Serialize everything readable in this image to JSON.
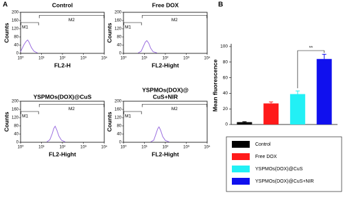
{
  "panel_labels": [
    "A",
    "B"
  ],
  "chart_data": [
    {
      "type": "histogram-line",
      "title": "Control",
      "xlabel": "FL2-H",
      "ylabel": "Counts",
      "xscale": "log",
      "xlim": [
        1,
        10000
      ],
      "xticks": [
        {
          "value": 1,
          "label": "10⁰"
        },
        {
          "value": 10,
          "label": "10¹"
        },
        {
          "value": 100,
          "label": "10²"
        },
        {
          "value": 1000,
          "label": "10³"
        },
        {
          "value": 10000,
          "label": "10⁴"
        }
      ],
      "ylim": [
        0,
        200
      ],
      "yticks": [
        0,
        40,
        80,
        120,
        160,
        200
      ],
      "color": "#9b6fe0",
      "gates": [
        {
          "name": "M1",
          "range": [
            1,
            7.5
          ],
          "level": 150
        },
        {
          "name": "M2",
          "range": [
            7.5,
            10000
          ],
          "level": 185
        }
      ],
      "x": [
        1,
        1.2,
        1.5,
        1.9,
        2.2,
        2.6,
        3.3,
        4.4,
        6.5
      ],
      "values": [
        8,
        25,
        45,
        60,
        65,
        52,
        28,
        10,
        2
      ]
    },
    {
      "type": "histogram-line",
      "title": "Free DOX",
      "xlabel": "FL2-Hight",
      "ylabel": "Counts",
      "xscale": "log",
      "xlim": [
        1,
        10000
      ],
      "xticks": [
        {
          "value": 1,
          "label": "10⁰"
        },
        {
          "value": 10,
          "label": "10¹"
        },
        {
          "value": 100,
          "label": "10²"
        },
        {
          "value": 1000,
          "label": "10³"
        },
        {
          "value": 10000,
          "label": "10⁴"
        }
      ],
      "ylim": [
        0,
        200
      ],
      "yticks": [
        0,
        40,
        80,
        120,
        160,
        200
      ],
      "color": "#9b6fe0",
      "gates": [
        {
          "name": "M1",
          "range": [
            1,
            7.5
          ],
          "level": 150
        },
        {
          "name": "M2",
          "range": [
            7.5,
            10000
          ],
          "level": 185
        }
      ],
      "x": [
        5,
        7,
        9,
        11,
        13,
        16,
        20,
        26,
        40
      ],
      "values": [
        2,
        10,
        35,
        55,
        62,
        50,
        25,
        8,
        2
      ]
    },
    {
      "type": "histogram-line",
      "title": [
        "YSPMOs(DOX)@CuS"
      ],
      "xlabel": "FL2-Hight",
      "ylabel": "Counts",
      "xscale": "log",
      "xlim": [
        1,
        10000
      ],
      "xticks": [
        {
          "value": 1,
          "label": "10⁰"
        },
        {
          "value": 10,
          "label": "10¹"
        },
        {
          "value": 100,
          "label": "10²"
        },
        {
          "value": 1000,
          "label": "10³"
        },
        {
          "value": 10000,
          "label": "10⁴"
        }
      ],
      "ylim": [
        0,
        200
      ],
      "yticks": [
        0,
        40,
        80,
        120,
        160,
        200
      ],
      "color": "#9b6fe0",
      "gates": [
        {
          "name": "M1",
          "range": [
            1,
            7.5
          ],
          "level": 150
        },
        {
          "name": "M2",
          "range": [
            7.5,
            10000
          ],
          "level": 185
        }
      ],
      "x": [
        18,
        25,
        32,
        39,
        45,
        54,
        68,
        90,
        135
      ],
      "values": [
        2,
        12,
        40,
        68,
        78,
        60,
        30,
        10,
        2
      ]
    },
    {
      "type": "histogram-line",
      "title": [
        "YSPMOs(DOX)@",
        "CuS+NIR"
      ],
      "xlabel": "FL2-Hight",
      "ylabel": "Counts",
      "xscale": "log",
      "xlim": [
        1,
        10000
      ],
      "xticks": [
        {
          "value": 1,
          "label": "10⁰"
        },
        {
          "value": 10,
          "label": "10¹"
        },
        {
          "value": 100,
          "label": "10²"
        },
        {
          "value": 1000,
          "label": "10³"
        },
        {
          "value": 10000,
          "label": "10⁴"
        }
      ],
      "ylim": [
        0,
        200
      ],
      "yticks": [
        0,
        40,
        80,
        120,
        160,
        200
      ],
      "color": "#9b6fe0",
      "gates": [
        {
          "name": "M1",
          "range": [
            1,
            7.5
          ],
          "level": 150
        },
        {
          "name": "M2",
          "range": [
            7.5,
            10000
          ],
          "level": 185
        }
      ],
      "x": [
        20,
        28,
        35,
        43,
        50,
        60,
        75,
        100,
        150
      ],
      "values": [
        2,
        10,
        38,
        65,
        75,
        58,
        28,
        9,
        2
      ]
    },
    {
      "type": "bar",
      "ylabel": "Mean fluorescence",
      "ylim": [
        0,
        100
      ],
      "yticks": [
        0,
        20,
        40,
        60,
        80,
        100
      ],
      "categories": [
        "Control",
        "Free DOX",
        "YSPMOs(DOX)@CuS",
        "YSPMOs(DOX)@CuS+NIR"
      ],
      "colors": [
        "#000000",
        "#ff1a1a",
        "#22f0f5",
        "#1010ee"
      ],
      "values": [
        3,
        27,
        39,
        84
      ],
      "errors": [
        0.6,
        2,
        4,
        6
      ],
      "annotation": "**"
    }
  ]
}
